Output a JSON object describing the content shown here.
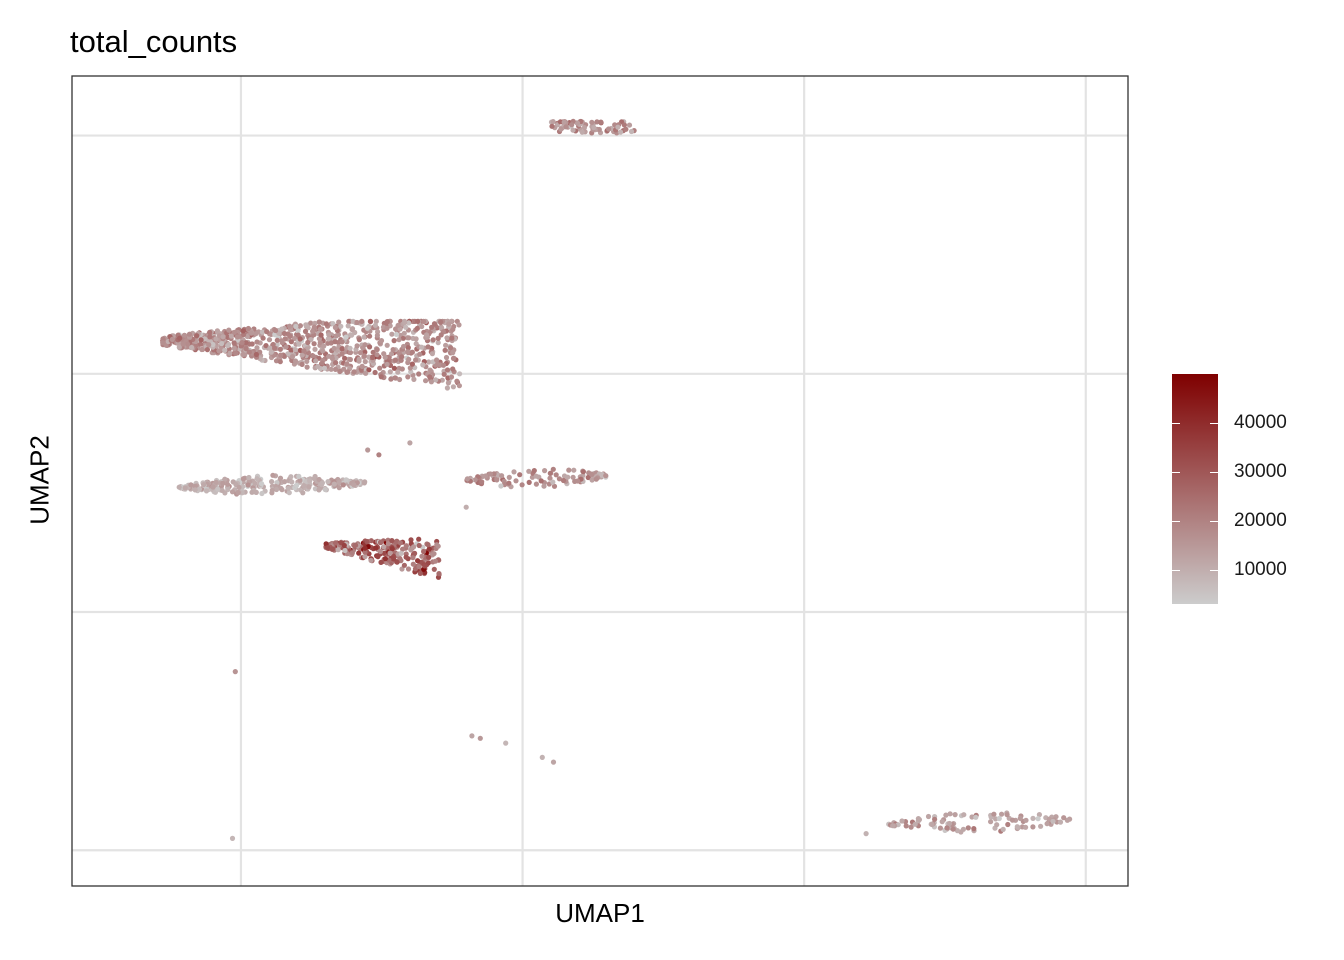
{
  "chart_data": {
    "type": "scatter",
    "title": "total_counts",
    "xlabel": "UMAP1",
    "ylabel": "UMAP2",
    "xlim": [
      -1.6,
      2.15
    ],
    "ylim": [
      -1.15,
      2.25
    ],
    "x_gridlines": [
      -1,
      0,
      1,
      2
    ],
    "y_gridlines": [
      -1,
      0,
      1,
      2
    ],
    "x_tick_labels_shown": false,
    "y_tick_labels_shown": false,
    "grid": true,
    "legend": {
      "position": "right",
      "type": "colorbar",
      "min": 3000,
      "max": 50000,
      "breaks": [
        10000,
        20000,
        30000,
        40000
      ],
      "labels": [
        "10000",
        "20000",
        "30000",
        "40000"
      ],
      "low_color": "#cccccc",
      "high_color": "#7f0000"
    },
    "clusters": [
      {
        "name": "",
        "x_range": [
          -1.28,
          -0.22
        ],
        "y_range": [
          0.92,
          1.22
        ],
        "count": 900,
        "mean_value": 16000,
        "shape": "wedge"
      },
      {
        "name": "",
        "x_range": [
          -1.22,
          -0.56
        ],
        "y_range": [
          0.47,
          0.59
        ],
        "count": 260,
        "mean_value": 9500,
        "shape": "band"
      },
      {
        "name": "",
        "x_range": [
          -0.7,
          -0.29
        ],
        "y_range": [
          0.16,
          0.32
        ],
        "count": 240,
        "mean_value": 25000,
        "shape": "triangle"
      },
      {
        "name": "",
        "x_range": [
          -0.2,
          0.3
        ],
        "y_range": [
          0.5,
          0.62
        ],
        "count": 110,
        "mean_value": 16000,
        "shape": "band"
      },
      {
        "name": "",
        "x_range": [
          0.1,
          0.4
        ],
        "y_range": [
          2.01,
          2.06
        ],
        "count": 70,
        "mean_value": 15000,
        "shape": "blob"
      },
      {
        "name": "",
        "x_range": [
          1.3,
          1.95
        ],
        "y_range": [
          -0.95,
          -0.82
        ],
        "count": 100,
        "mean_value": 13000,
        "shape": "band"
      }
    ],
    "stray_points": [
      {
        "x": -1.02,
        "y": -0.25,
        "value": 16000
      },
      {
        "x": -1.03,
        "y": -0.95,
        "value": 8000
      },
      {
        "x": -0.18,
        "y": -0.52,
        "value": 12000
      },
      {
        "x": -0.15,
        "y": -0.53,
        "value": 15000
      },
      {
        "x": -0.06,
        "y": -0.55,
        "value": 8000
      },
      {
        "x": 0.07,
        "y": -0.61,
        "value": 9000
      },
      {
        "x": 0.11,
        "y": -0.63,
        "value": 12000
      },
      {
        "x": 1.22,
        "y": -0.93,
        "value": 9000
      },
      {
        "x": -0.51,
        "y": 0.66,
        "value": 20000
      },
      {
        "x": -0.55,
        "y": 0.68,
        "value": 15000
      },
      {
        "x": -0.4,
        "y": 0.71,
        "value": 12000
      },
      {
        "x": -0.2,
        "y": 0.44,
        "value": 10000
      }
    ]
  }
}
